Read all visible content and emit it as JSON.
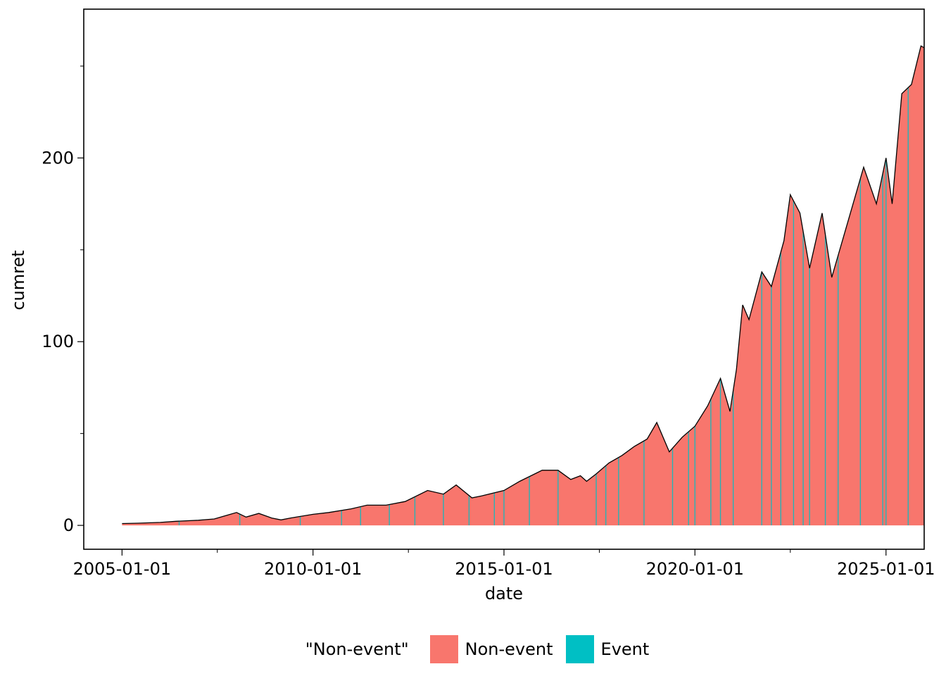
{
  "chart_data": {
    "type": "area",
    "xlabel": "date",
    "ylabel": "cumret",
    "x_type": "date",
    "xlim": [
      "2004-01-01",
      "2026-01-01"
    ],
    "ylim": [
      -13,
      281
    ],
    "x_ticks": [
      "2005-01-01",
      "2010-01-01",
      "2015-01-01",
      "2020-01-01",
      "2025-01-01"
    ],
    "x_minor_ticks": [
      "2007-07-01",
      "2012-07-01",
      "2017-07-01",
      "2022-07-01"
    ],
    "y_ticks": [
      0,
      100,
      200
    ],
    "y_minor_ticks": [
      50,
      150,
      250
    ],
    "legend": {
      "title": "\"Non-event\"",
      "position": "bottom",
      "entries": [
        {
          "label": "Non-event",
          "color": "#F8766D"
        },
        {
          "label": "Event",
          "color": "#00BFC4"
        }
      ]
    },
    "series": [
      {
        "name": "cumret",
        "fill_color": "#F8766D",
        "line_color": "#000000",
        "points": [
          [
            "2005-01-01",
            1
          ],
          [
            "2005-06-01",
            1.2
          ],
          [
            "2006-01-01",
            1.6
          ],
          [
            "2006-06-01",
            2.2
          ],
          [
            "2007-01-01",
            2.8
          ],
          [
            "2007-06-01",
            3.5
          ],
          [
            "2007-10-01",
            5.5
          ],
          [
            "2008-01-01",
            7
          ],
          [
            "2008-04-01",
            4.5
          ],
          [
            "2008-08-01",
            6.5
          ],
          [
            "2008-12-01",
            4
          ],
          [
            "2009-03-01",
            3
          ],
          [
            "2009-06-01",
            4
          ],
          [
            "2010-01-01",
            6
          ],
          [
            "2010-06-01",
            7
          ],
          [
            "2011-01-01",
            9
          ],
          [
            "2011-06-01",
            11
          ],
          [
            "2011-12-01",
            11
          ],
          [
            "2012-06-01",
            13
          ],
          [
            "2013-01-01",
            19
          ],
          [
            "2013-06-01",
            17
          ],
          [
            "2013-10-01",
            22
          ],
          [
            "2014-03-01",
            15
          ],
          [
            "2014-06-01",
            16
          ],
          [
            "2015-01-01",
            19
          ],
          [
            "2015-06-01",
            24
          ],
          [
            "2016-01-01",
            30
          ],
          [
            "2016-06-01",
            30
          ],
          [
            "2016-10-01",
            25
          ],
          [
            "2017-01-01",
            27
          ],
          [
            "2017-03-01",
            24
          ],
          [
            "2017-06-01",
            28
          ],
          [
            "2017-10-01",
            34
          ],
          [
            "2018-02-01",
            38
          ],
          [
            "2018-06-01",
            43
          ],
          [
            "2018-10-01",
            47
          ],
          [
            "2019-01-01",
            56
          ],
          [
            "2019-05-01",
            40
          ],
          [
            "2019-09-01",
            48
          ],
          [
            "2020-01-01",
            54
          ],
          [
            "2020-05-01",
            65
          ],
          [
            "2020-09-01",
            80
          ],
          [
            "2020-12-01",
            62
          ],
          [
            "2021-02-01",
            85
          ],
          [
            "2021-04-01",
            120
          ],
          [
            "2021-06-01",
            112
          ],
          [
            "2021-10-01",
            138
          ],
          [
            "2022-01-01",
            130
          ],
          [
            "2022-05-01",
            155
          ],
          [
            "2022-07-01",
            180
          ],
          [
            "2022-10-01",
            170
          ],
          [
            "2023-01-01",
            140
          ],
          [
            "2023-05-01",
            170
          ],
          [
            "2023-08-01",
            135
          ],
          [
            "2024-01-01",
            165
          ],
          [
            "2024-06-01",
            195
          ],
          [
            "2024-10-01",
            175
          ],
          [
            "2025-01-01",
            200
          ],
          [
            "2025-03-01",
            175
          ],
          [
            "2025-06-01",
            235
          ],
          [
            "2025-09-01",
            240
          ],
          [
            "2025-12-01",
            261
          ],
          [
            "2026-01-01",
            260
          ]
        ]
      }
    ],
    "event_dates": [
      "2006-07-01",
      "2008-02-01",
      "2009-09-01",
      "2010-10-01",
      "2011-04-01",
      "2012-01-01",
      "2012-09-01",
      "2013-06-01",
      "2014-02-01",
      "2014-10-01",
      "2015-01-01",
      "2015-09-01",
      "2016-06-01",
      "2017-06-01",
      "2017-09-01",
      "2018-01-01",
      "2018-09-01",
      "2019-06-01",
      "2019-11-01",
      "2020-01-01",
      "2020-06-01",
      "2020-09-01",
      "2021-01-01",
      "2021-10-01",
      "2022-01-01",
      "2022-04-01",
      "2022-08-01",
      "2022-11-01",
      "2023-01-01",
      "2023-06-01",
      "2023-10-01",
      "2024-05-01",
      "2024-12-01",
      "2025-01-01",
      "2025-08-01",
      "2026-01-01"
    ]
  }
}
